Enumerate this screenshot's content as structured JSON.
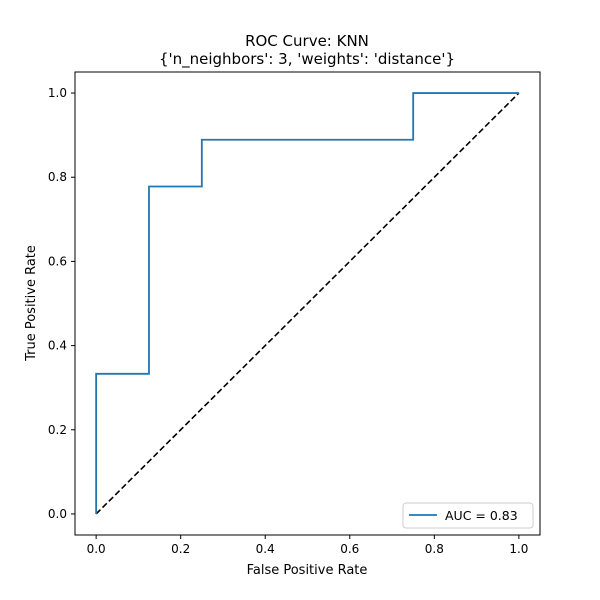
{
  "chart_data": {
    "type": "line",
    "title": "ROC Curve: KNN",
    "subtitle": "{'n_neighbors': 3, 'weights': 'distance'}",
    "xlabel": "False Positive Rate",
    "ylabel": "True Positive Rate",
    "xlim": [
      -0.05,
      1.05
    ],
    "ylim": [
      -0.05,
      1.05
    ],
    "xticks": [
      0.0,
      0.2,
      0.4,
      0.6,
      0.8,
      1.0
    ],
    "yticks": [
      0.0,
      0.2,
      0.4,
      0.6,
      0.8,
      1.0
    ],
    "xtick_labels": [
      "0.0",
      "0.2",
      "0.4",
      "0.6",
      "0.8",
      "1.0"
    ],
    "ytick_labels": [
      "0.0",
      "0.2",
      "0.4",
      "0.6",
      "0.8",
      "1.0"
    ],
    "grid": false,
    "legend_placement": "lower-right",
    "series": [
      {
        "name": "AUC = 0.83",
        "color": "#1f77b4",
        "style": "solid",
        "x": [
          0.0,
          0.0,
          0.125,
          0.125,
          0.25,
          0.25,
          0.75,
          0.75,
          1.0
        ],
        "y": [
          0.0,
          0.333,
          0.333,
          0.778,
          0.778,
          0.889,
          0.889,
          1.0,
          1.0
        ]
      },
      {
        "color": "#000000",
        "style": "dashed",
        "x": [
          0.0,
          1.0
        ],
        "y": [
          0.0,
          1.0
        ]
      }
    ]
  }
}
